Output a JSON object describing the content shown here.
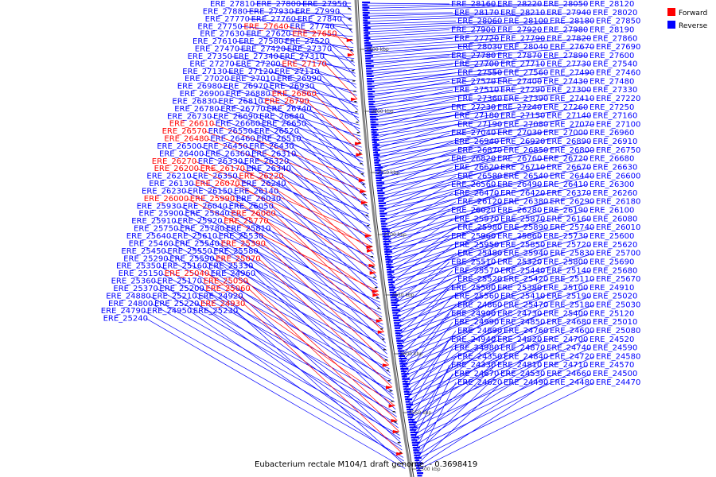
{
  "legend": {
    "forward_label": "Forward",
    "reverse_label": "Reverse",
    "forward_color": "#ff0000",
    "reverse_color": "#0000ff"
  },
  "caption": "Eubacterium rectale M104/1 draft genome. - 0.3698419",
  "ticks": [
    "2800 kbp",
    "2800 kbp",
    "2750 kbp",
    "2700 kbp",
    "2650 kbp",
    "2600 kbp",
    "2550 kbp",
    "2500 kbp"
  ],
  "left_labels": [
    {
      "t": "ERE_27810",
      "s": "r"
    },
    {
      "t": "ERE_27800",
      "s": "r"
    },
    {
      "t": "ERE_27950",
      "s": "r"
    },
    {
      "t": "ERE_27880",
      "s": "r"
    },
    {
      "t": "ERE_27930",
      "s": "r"
    },
    {
      "t": "ERE_27990",
      "s": "r"
    },
    {
      "t": "ERE_27770",
      "s": "r"
    },
    {
      "t": "ERE_27760",
      "s": "r"
    },
    {
      "t": "ERE_27840",
      "s": "r"
    },
    {
      "t": "ERE_27750",
      "s": "r"
    },
    {
      "t": "ERE_27640",
      "s": "f"
    },
    {
      "t": "ERE_27740",
      "s": "r"
    },
    {
      "t": "ERE_27630",
      "s": "r"
    },
    {
      "t": "ERE_27620",
      "s": "r"
    },
    {
      "t": "ERE_27650",
      "s": "f"
    },
    {
      "t": "ERE_27610",
      "s": "r"
    },
    {
      "t": "ERE_27580",
      "s": "r"
    },
    {
      "t": "ERE_27520",
      "s": "r"
    },
    {
      "t": "ERE_27470",
      "s": "r"
    },
    {
      "t": "ERE_27420",
      "s": "r"
    },
    {
      "t": "ERE_27370",
      "s": "r"
    },
    {
      "t": "ERE_27350",
      "s": "r"
    },
    {
      "t": "ERE_27340",
      "s": "r"
    },
    {
      "t": "ERE_27310",
      "s": "r"
    },
    {
      "t": "ERE_27270",
      "s": "r"
    },
    {
      "t": "ERE_27200",
      "s": "r"
    },
    {
      "t": "ERE_27170",
      "s": "f"
    },
    {
      "t": "ERE_27130",
      "s": "r"
    },
    {
      "t": "ERE_27120",
      "s": "r"
    },
    {
      "t": "ERE_27110",
      "s": "r"
    },
    {
      "t": "ERE_27020",
      "s": "r"
    },
    {
      "t": "ERE_27010",
      "s": "r"
    },
    {
      "t": "ERE_26990",
      "s": "r"
    },
    {
      "t": "ERE_26980",
      "s": "r"
    },
    {
      "t": "ERE_26970",
      "s": "r"
    },
    {
      "t": "ERE_26930",
      "s": "r"
    },
    {
      "t": "ERE_26900",
      "s": "r"
    },
    {
      "t": "ERE_26880",
      "s": "r"
    },
    {
      "t": "ERE_26860",
      "s": "f"
    },
    {
      "t": "ERE_26830",
      "s": "r"
    },
    {
      "t": "ERE_26810",
      "s": "r"
    },
    {
      "t": "ERE_26790",
      "s": "f"
    },
    {
      "t": "ERE_26780",
      "s": "r"
    },
    {
      "t": "ERE_26770",
      "s": "r"
    },
    {
      "t": "ERE_26740",
      "s": "r"
    },
    {
      "t": "ERE_26730",
      "s": "r"
    },
    {
      "t": "ERE_26690",
      "s": "r"
    },
    {
      "t": "ERE_26640",
      "s": "r"
    },
    {
      "t": "ERE_26610",
      "s": "f"
    },
    {
      "t": "ERE_26660",
      "s": "r"
    },
    {
      "t": "ERE_26650",
      "s": "r"
    },
    {
      "t": "ERE_26570",
      "s": "f"
    },
    {
      "t": "ERE_26550",
      "s": "r"
    },
    {
      "t": "ERE_26520",
      "s": "r"
    },
    {
      "t": "ERE_26480",
      "s": "f"
    },
    {
      "t": "ERE_26460",
      "s": "r"
    },
    {
      "t": "ERE_26510",
      "s": "r"
    },
    {
      "t": "ERE_26500",
      "s": "r"
    },
    {
      "t": "ERE_26450",
      "s": "r"
    },
    {
      "t": "ERE_26430",
      "s": "r"
    },
    {
      "t": "ERE_26400",
      "s": "r"
    },
    {
      "t": "ERE_26360",
      "s": "r"
    },
    {
      "t": "ERE_26310",
      "s": "r"
    },
    {
      "t": "ERE_26270",
      "s": "f"
    },
    {
      "t": "ERE_26330",
      "s": "r"
    },
    {
      "t": "ERE_26320",
      "s": "r"
    },
    {
      "t": "ERE_26200",
      "s": "f"
    },
    {
      "t": "ERE_26170",
      "s": "f"
    },
    {
      "t": "ERE_26340",
      "s": "r"
    },
    {
      "t": "ERE_26210",
      "s": "r"
    },
    {
      "t": "ERE_26350",
      "s": "r"
    },
    {
      "t": "ERE_26220",
      "s": "f"
    },
    {
      "t": "ERE_26130",
      "s": "r"
    },
    {
      "t": "ERE_26070",
      "s": "f"
    },
    {
      "t": "ERE_26240",
      "s": "r"
    },
    {
      "t": "ERE_26230",
      "s": "r"
    },
    {
      "t": "ERE_26150",
      "s": "r"
    },
    {
      "t": "ERE_26140",
      "s": "r"
    },
    {
      "t": "ERE_26000",
      "s": "f"
    },
    {
      "t": "ERE_25990",
      "s": "f"
    },
    {
      "t": "ERE_26030",
      "s": "r"
    },
    {
      "t": "ERE_25930",
      "s": "r"
    },
    {
      "t": "ERE_26040",
      "s": "r"
    },
    {
      "t": "ERE_26050",
      "s": "r"
    },
    {
      "t": "ERE_25900",
      "s": "r"
    },
    {
      "t": "ERE_25840",
      "s": "r"
    },
    {
      "t": "ERE_26060",
      "s": "f"
    },
    {
      "t": "ERE_25910",
      "s": "r"
    },
    {
      "t": "ERE_25920",
      "s": "r"
    },
    {
      "t": "ERE_25770",
      "s": "f"
    },
    {
      "t": "ERE_25750",
      "s": "r"
    },
    {
      "t": "ERE_25780",
      "s": "r"
    },
    {
      "t": "ERE_25810",
      "s": "r"
    },
    {
      "t": "ERE_25640",
      "s": "r"
    },
    {
      "t": "ERE_25610",
      "s": "r"
    },
    {
      "t": "ERE_25530",
      "s": "r"
    },
    {
      "t": "ERE_25460",
      "s": "r"
    },
    {
      "t": "ERE_25540",
      "s": "r"
    },
    {
      "t": "ERE_25390",
      "s": "f"
    },
    {
      "t": "ERE_25450",
      "s": "r"
    },
    {
      "t": "ERE_25550",
      "s": "r"
    },
    {
      "t": "ERE_25580",
      "s": "r"
    },
    {
      "t": "ERE_25290",
      "s": "r"
    },
    {
      "t": "ERE_25590",
      "s": "r"
    },
    {
      "t": "ERE_25070",
      "s": "f"
    },
    {
      "t": "ERE_25350",
      "s": "r"
    },
    {
      "t": "ERE_25160",
      "s": "r"
    },
    {
      "t": "ERE_25330",
      "s": "r"
    },
    {
      "t": "ERE_25150",
      "s": "r"
    },
    {
      "t": "ERE_25040",
      "s": "f"
    },
    {
      "t": "ERE_24960",
      "s": "r"
    },
    {
      "t": "ERE_25360",
      "s": "r"
    },
    {
      "t": "ERE_25170",
      "s": "r"
    },
    {
      "t": "ERE_25050",
      "s": "f"
    },
    {
      "t": "ERE_25370",
      "s": "r"
    },
    {
      "t": "ERE_25200",
      "s": "r"
    },
    {
      "t": "ERE_25060",
      "s": "f"
    },
    {
      "t": "ERE_24880",
      "s": "r"
    },
    {
      "t": "ERE_25210",
      "s": "r"
    },
    {
      "t": "ERE_24920",
      "s": "r"
    },
    {
      "t": "ERE_24800",
      "s": "r"
    },
    {
      "t": "ERE_25220",
      "s": "r"
    },
    {
      "t": "ERE_24930",
      "s": "f"
    },
    {
      "t": "ERE_24790",
      "s": "r"
    },
    {
      "t": "ERE_24950",
      "s": "r"
    },
    {
      "t": "ERE_25230",
      "s": "r"
    },
    {
      "t": "ERE_25240",
      "s": "r"
    }
  ],
  "right_labels": [
    {
      "t": "ERE_28160",
      "s": "r"
    },
    {
      "t": "ERE_28220",
      "s": "r"
    },
    {
      "t": "ERE_28050",
      "s": "r"
    },
    {
      "t": "ERE_28120",
      "s": "r"
    },
    {
      "t": "ERE_28170",
      "s": "r"
    },
    {
      "t": "ERE_28210",
      "s": "r"
    },
    {
      "t": "ERE_27940",
      "s": "r"
    },
    {
      "t": "ERE_28020",
      "s": "r"
    },
    {
      "t": "ERE_28060",
      "s": "r"
    },
    {
      "t": "ERE_28100",
      "s": "r"
    },
    {
      "t": "ERE_28180",
      "s": "r"
    },
    {
      "t": "ERE_27850",
      "s": "r"
    },
    {
      "t": "ERE_27900",
      "s": "r"
    },
    {
      "t": "ERE_27920",
      "s": "r"
    },
    {
      "t": "ERE_27980",
      "s": "r"
    },
    {
      "t": "ERE_28190",
      "s": "r"
    },
    {
      "t": "ERE_27720",
      "s": "r"
    },
    {
      "t": "ERE_27790",
      "s": "r"
    },
    {
      "t": "ERE_27820",
      "s": "r"
    },
    {
      "t": "ERE_27860",
      "s": "r"
    },
    {
      "t": "ERE_28030",
      "s": "r"
    },
    {
      "t": "ERE_28040",
      "s": "r"
    },
    {
      "t": "ERE_27670",
      "s": "r"
    },
    {
      "t": "ERE_27690",
      "s": "r"
    },
    {
      "t": "ERE_27780",
      "s": "r"
    },
    {
      "t": "ERE_27870",
      "s": "r"
    },
    {
      "t": "ERE_27890",
      "s": "r"
    },
    {
      "t": "ERE_27600",
      "s": "r"
    },
    {
      "t": "ERE_27700",
      "s": "r"
    },
    {
      "t": "ERE_27710",
      "s": "r"
    },
    {
      "t": "ERE_27730",
      "s": "r"
    },
    {
      "t": "ERE_27540",
      "s": "r"
    },
    {
      "t": "ERE_27550",
      "s": "r"
    },
    {
      "t": "ERE_27560",
      "s": "r"
    },
    {
      "t": "ERE_27490",
      "s": "r"
    },
    {
      "t": "ERE_27460",
      "s": "r"
    },
    {
      "t": "ERE_27570",
      "s": "r"
    },
    {
      "t": "ERE_27400",
      "s": "r"
    },
    {
      "t": "ERE_27430",
      "s": "r"
    },
    {
      "t": "ERE_27480",
      "s": "r"
    },
    {
      "t": "ERE_27510",
      "s": "r"
    },
    {
      "t": "ERE_27290",
      "s": "r"
    },
    {
      "t": "ERE_27300",
      "s": "r"
    },
    {
      "t": "ERE_27330",
      "s": "r"
    },
    {
      "t": "ERE_27360",
      "s": "r"
    },
    {
      "t": "ERE_27390",
      "s": "r"
    },
    {
      "t": "ERE_27410",
      "s": "r"
    },
    {
      "t": "ERE_27220",
      "s": "r"
    },
    {
      "t": "ERE_27230",
      "s": "r"
    },
    {
      "t": "ERE_27240",
      "s": "r"
    },
    {
      "t": "ERE_27260",
      "s": "r"
    },
    {
      "t": "ERE_27250",
      "s": "r"
    },
    {
      "t": "ERE_27180",
      "s": "r"
    },
    {
      "t": "ERE_27150",
      "s": "r"
    },
    {
      "t": "ERE_27140",
      "s": "r"
    },
    {
      "t": "ERE_27160",
      "s": "r"
    },
    {
      "t": "ERE_27190",
      "s": "r"
    },
    {
      "t": "ERE_27080",
      "s": "r"
    },
    {
      "t": "ERE_27070",
      "s": "r"
    },
    {
      "t": "ERE_27100",
      "s": "r"
    },
    {
      "t": "ERE_27040",
      "s": "r"
    },
    {
      "t": "ERE_27030",
      "s": "r"
    },
    {
      "t": "ERE_27000",
      "s": "r"
    },
    {
      "t": "ERE_26960",
      "s": "r"
    },
    {
      "t": "ERE_26940",
      "s": "r"
    },
    {
      "t": "ERE_26920",
      "s": "r"
    },
    {
      "t": "ERE_26890",
      "s": "r"
    },
    {
      "t": "ERE_26910",
      "s": "r"
    },
    {
      "t": "ERE_26870",
      "s": "r"
    },
    {
      "t": "ERE_26850",
      "s": "r"
    },
    {
      "t": "ERE_26800",
      "s": "r"
    },
    {
      "t": "ERE_26750",
      "s": "r"
    },
    {
      "t": "ERE_26820",
      "s": "r"
    },
    {
      "t": "ERE_26760",
      "s": "r"
    },
    {
      "t": "ERE_26720",
      "s": "r"
    },
    {
      "t": "ERE_26680",
      "s": "r"
    },
    {
      "t": "ERE_26620",
      "s": "r"
    },
    {
      "t": "ERE_26710",
      "s": "r"
    },
    {
      "t": "ERE_26670",
      "s": "r"
    },
    {
      "t": "ERE_26630",
      "s": "r"
    },
    {
      "t": "ERE_26580",
      "s": "r"
    },
    {
      "t": "ERE_26540",
      "s": "r"
    },
    {
      "t": "ERE_26440",
      "s": "r"
    },
    {
      "t": "ERE_26600",
      "s": "r"
    },
    {
      "t": "ERE_26560",
      "s": "r"
    },
    {
      "t": "ERE_26490",
      "s": "r"
    },
    {
      "t": "ERE_26410",
      "s": "r"
    },
    {
      "t": "ERE_26300",
      "s": "r"
    },
    {
      "t": "ERE_26470",
      "s": "r"
    },
    {
      "t": "ERE_26420",
      "s": "r"
    },
    {
      "t": "ERE_26370",
      "s": "r"
    },
    {
      "t": "ERE_26260",
      "s": "r"
    },
    {
      "t": "ERE_26120",
      "s": "r"
    },
    {
      "t": "ERE_26380",
      "s": "r"
    },
    {
      "t": "ERE_26290",
      "s": "r"
    },
    {
      "t": "ERE_26180",
      "s": "r"
    },
    {
      "t": "ERE_26020",
      "s": "r"
    },
    {
      "t": "ERE_26280",
      "s": "r"
    },
    {
      "t": "ERE_26190",
      "s": "r"
    },
    {
      "t": "ERE_26100",
      "s": "r"
    },
    {
      "t": "ERE_25970",
      "s": "r"
    },
    {
      "t": "ERE_25870",
      "s": "r"
    },
    {
      "t": "ERE_26160",
      "s": "r"
    },
    {
      "t": "ERE_26080",
      "s": "r"
    },
    {
      "t": "ERE_25980",
      "s": "r"
    },
    {
      "t": "ERE_25890",
      "s": "r"
    },
    {
      "t": "ERE_25740",
      "s": "r"
    },
    {
      "t": "ERE_26010",
      "s": "r"
    },
    {
      "t": "ERE_25960",
      "s": "r"
    },
    {
      "t": "ERE_25860",
      "s": "r"
    },
    {
      "t": "ERE_25730",
      "s": "r"
    },
    {
      "t": "ERE_25600",
      "s": "r"
    },
    {
      "t": "ERE_25950",
      "s": "r"
    },
    {
      "t": "ERE_25850",
      "s": "r"
    },
    {
      "t": "ERE_25720",
      "s": "r"
    },
    {
      "t": "ERE_25620",
      "s": "r"
    },
    {
      "t": "ERE_25480",
      "s": "r"
    },
    {
      "t": "ERE_25940",
      "s": "r"
    },
    {
      "t": "ERE_25830",
      "s": "r"
    },
    {
      "t": "ERE_25700",
      "s": "r"
    },
    {
      "t": "ERE_25510",
      "s": "r"
    },
    {
      "t": "ERE_25320",
      "s": "r"
    },
    {
      "t": "ERE_25800",
      "s": "r"
    },
    {
      "t": "ERE_25690",
      "s": "r"
    },
    {
      "t": "ERE_25570",
      "s": "r"
    },
    {
      "t": "ERE_25440",
      "s": "r"
    },
    {
      "t": "ERE_25140",
      "s": "r"
    },
    {
      "t": "ERE_25680",
      "s": "r"
    },
    {
      "t": "ERE_25520",
      "s": "r"
    },
    {
      "t": "ERE_25420",
      "s": "r"
    },
    {
      "t": "ERE_25110",
      "s": "r"
    },
    {
      "t": "ERE_25670",
      "s": "r"
    },
    {
      "t": "ERE_25500",
      "s": "r"
    },
    {
      "t": "ERE_25380",
      "s": "r"
    },
    {
      "t": "ERE_25100",
      "s": "r"
    },
    {
      "t": "ERE_24910",
      "s": "r"
    },
    {
      "t": "ERE_25560",
      "s": "r"
    },
    {
      "t": "ERE_25410",
      "s": "r"
    },
    {
      "t": "ERE_25190",
      "s": "r"
    },
    {
      "t": "ERE_25020",
      "s": "r"
    },
    {
      "t": "ERE_24860",
      "s": "r"
    },
    {
      "t": "ERE_25470",
      "s": "r"
    },
    {
      "t": "ERE_25180",
      "s": "r"
    },
    {
      "t": "ERE_25030",
      "s": "r"
    },
    {
      "t": "ERE_24900",
      "s": "r"
    },
    {
      "t": "ERE_24730",
      "s": "r"
    },
    {
      "t": "ERE_25400",
      "s": "r"
    },
    {
      "t": "ERE_25120",
      "s": "r"
    },
    {
      "t": "ERE_24990",
      "s": "r"
    },
    {
      "t": "ERE_24850",
      "s": "r"
    },
    {
      "t": "ERE_24680",
      "s": "r"
    },
    {
      "t": "ERE_25010",
      "s": "r"
    },
    {
      "t": "ERE_24890",
      "s": "r"
    },
    {
      "t": "ERE_24760",
      "s": "r"
    },
    {
      "t": "ERE_24600",
      "s": "r"
    },
    {
      "t": "ERE_25080",
      "s": "r"
    },
    {
      "t": "ERE_24940",
      "s": "r"
    },
    {
      "t": "ERE_24820",
      "s": "r"
    },
    {
      "t": "ERE_24700",
      "s": "r"
    },
    {
      "t": "ERE_24520",
      "s": "r"
    },
    {
      "t": "ERE_24980",
      "s": "r"
    },
    {
      "t": "ERE_24870",
      "s": "r"
    },
    {
      "t": "ERE_24740",
      "s": "r"
    },
    {
      "t": "ERE_24590",
      "s": "r"
    },
    {
      "t": "ERE_24350",
      "s": "r"
    },
    {
      "t": "ERE_24840",
      "s": "r"
    },
    {
      "t": "ERE_24720",
      "s": "r"
    },
    {
      "t": "ERE_24580",
      "s": "r"
    },
    {
      "t": "ERE_24330",
      "s": "r"
    },
    {
      "t": "ERE_24810",
      "s": "r"
    },
    {
      "t": "ERE_24710",
      "s": "r"
    },
    {
      "t": "ERE_24570",
      "s": "r"
    },
    {
      "t": "ERE_24670",
      "s": "r"
    },
    {
      "t": "ERE_24530",
      "s": "r"
    },
    {
      "t": "ERE_24660",
      "s": "r"
    },
    {
      "t": "ERE_24500",
      "s": "r"
    },
    {
      "t": "ERE_24620",
      "s": "r"
    },
    {
      "t": "ERE_24490",
      "s": "r"
    },
    {
      "t": "ERE_24480",
      "s": "r"
    },
    {
      "t": "ERE_24470",
      "s": "r"
    }
  ]
}
